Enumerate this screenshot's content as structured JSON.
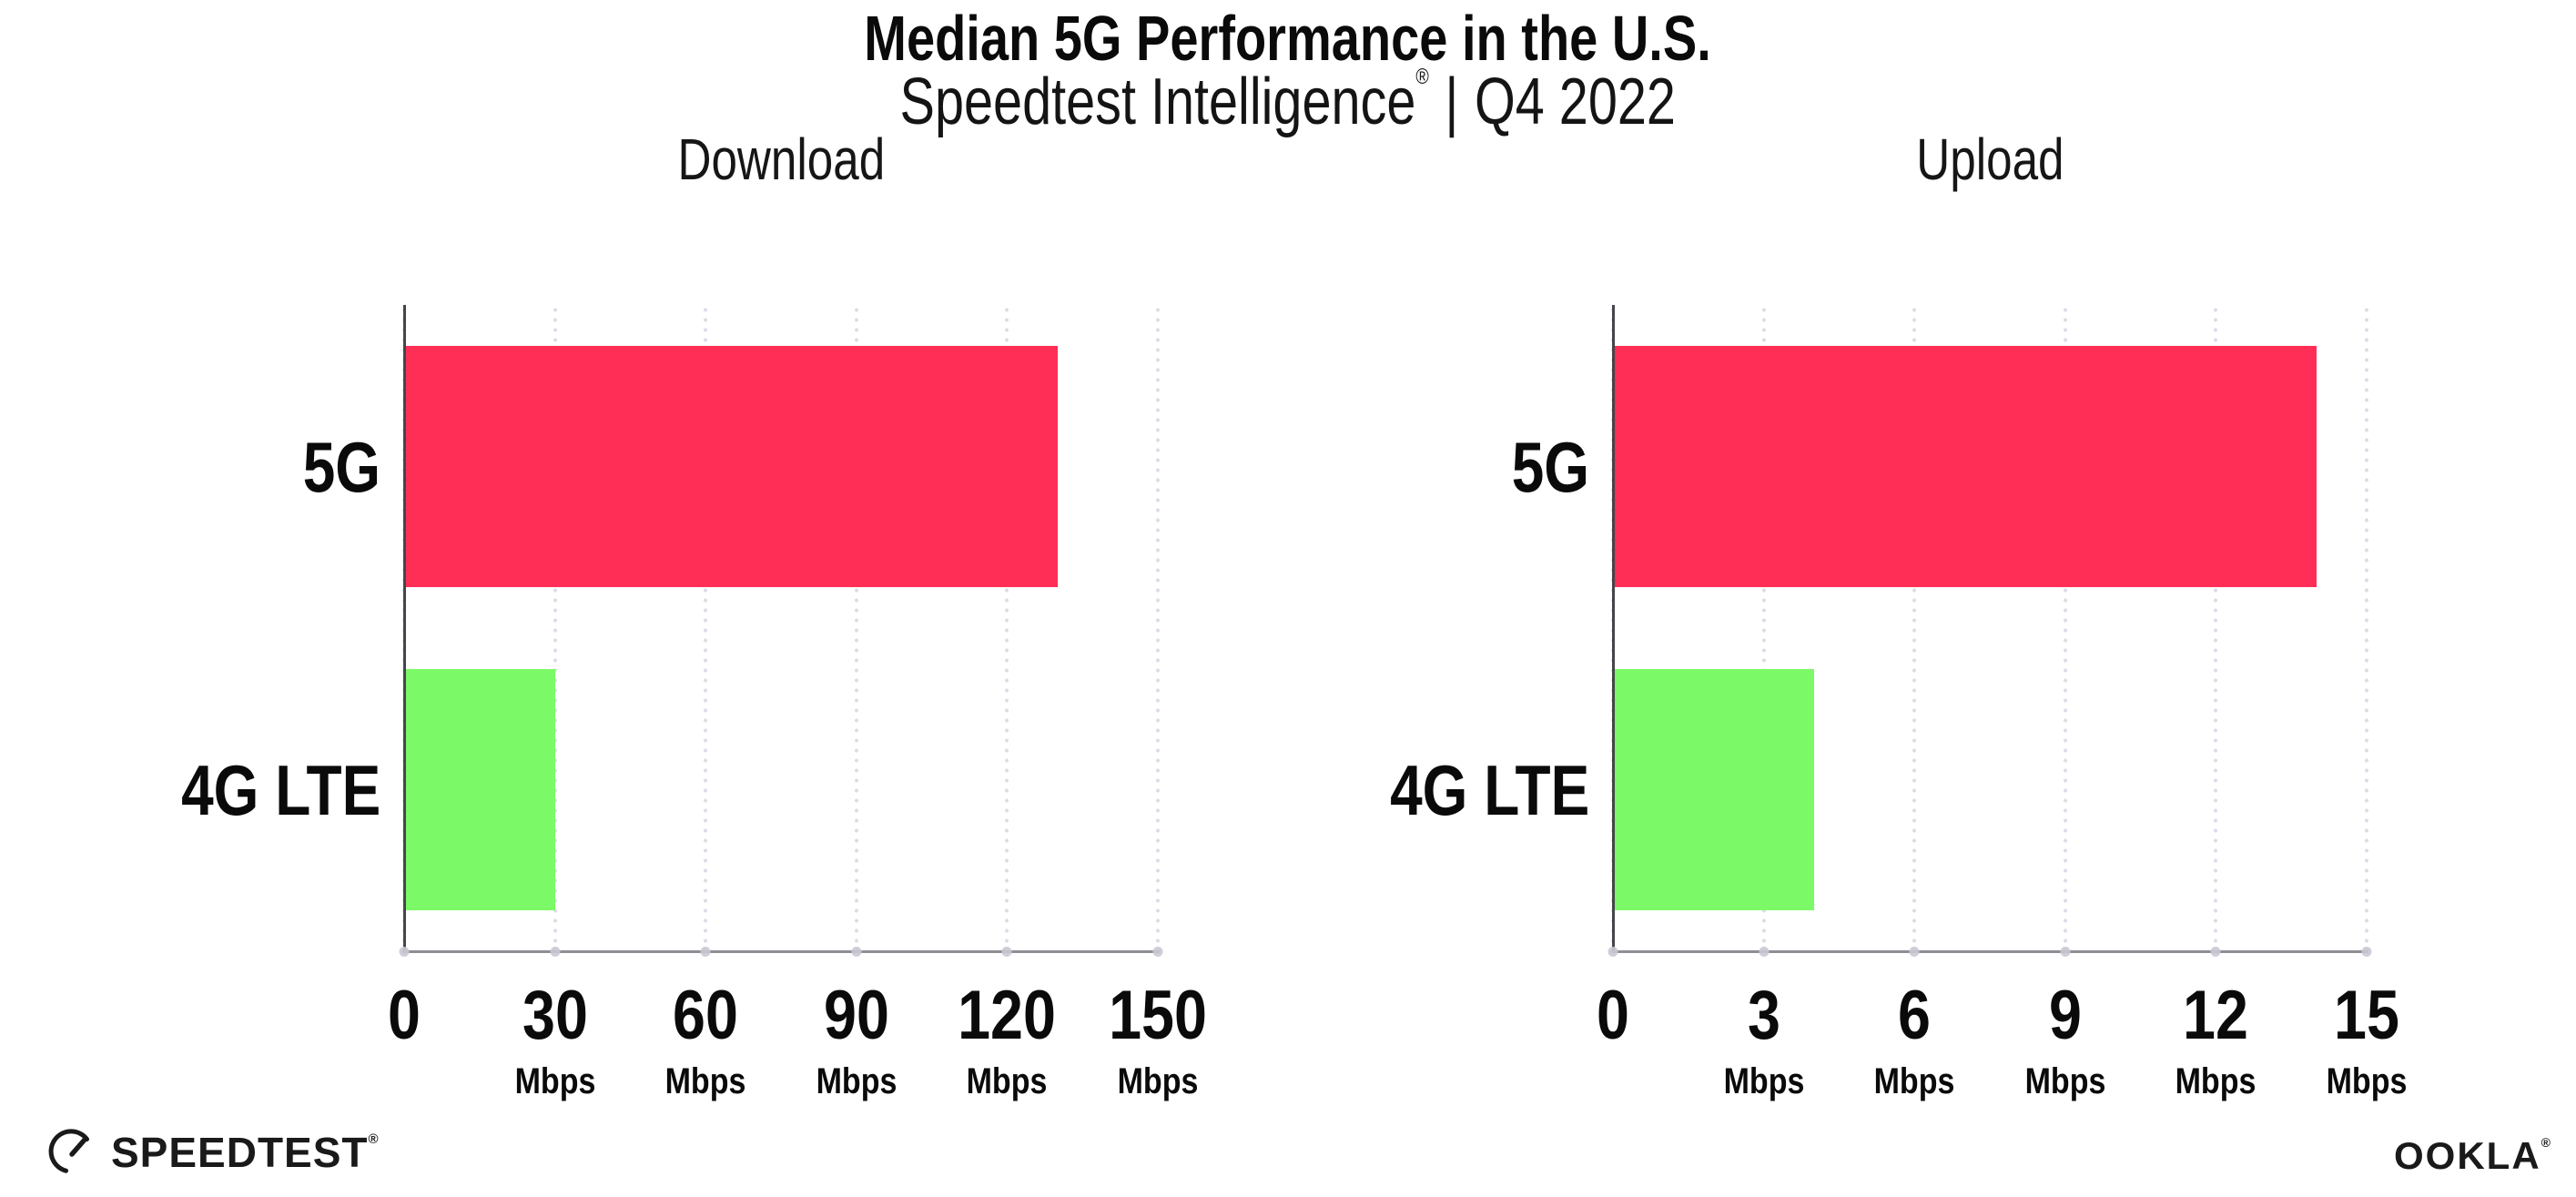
{
  "header": {
    "title": "Median 5G Performance in the U.S.",
    "subtitle": {
      "product": "Speedtest Intelligence",
      "registered_mark": "®",
      "separator": "|",
      "period": "Q4 2022"
    }
  },
  "chart_data": [
    {
      "type": "bar",
      "orientation": "horizontal",
      "title": "Download",
      "categories": [
        "5G",
        "4G LTE"
      ],
      "values": [
        130,
        30
      ],
      "unit": "Mbps",
      "xlim": [
        0,
        150
      ],
      "xticks": [
        0,
        30,
        60,
        90,
        120,
        150
      ],
      "grid": "vertical-dotted",
      "legend": "none",
      "bar_colors": [
        "#FF2E56",
        "#7CF966"
      ]
    },
    {
      "type": "bar",
      "orientation": "horizontal",
      "title": "Upload",
      "categories": [
        "5G",
        "4G LTE"
      ],
      "values": [
        14,
        4
      ],
      "unit": "Mbps",
      "xlim": [
        0,
        15
      ],
      "xticks": [
        0,
        3,
        6,
        9,
        12,
        15
      ],
      "grid": "vertical-dotted",
      "legend": "none",
      "bar_colors": [
        "#FF2E56",
        "#7CF966"
      ]
    }
  ],
  "footer": {
    "speedtest_wordmark": "SPEEDTEST",
    "speedtest_mark": "®",
    "ookla_wordmark": "OOKLA",
    "ookla_mark": "®"
  },
  "colors": {
    "bar_5g": "#FF2E56",
    "bar_4g_lte": "#7CF966",
    "gridline": "#dcdce8",
    "y_axis": "#45454b",
    "x_axis": "#8e8e94",
    "text": "#0a0a0a"
  }
}
